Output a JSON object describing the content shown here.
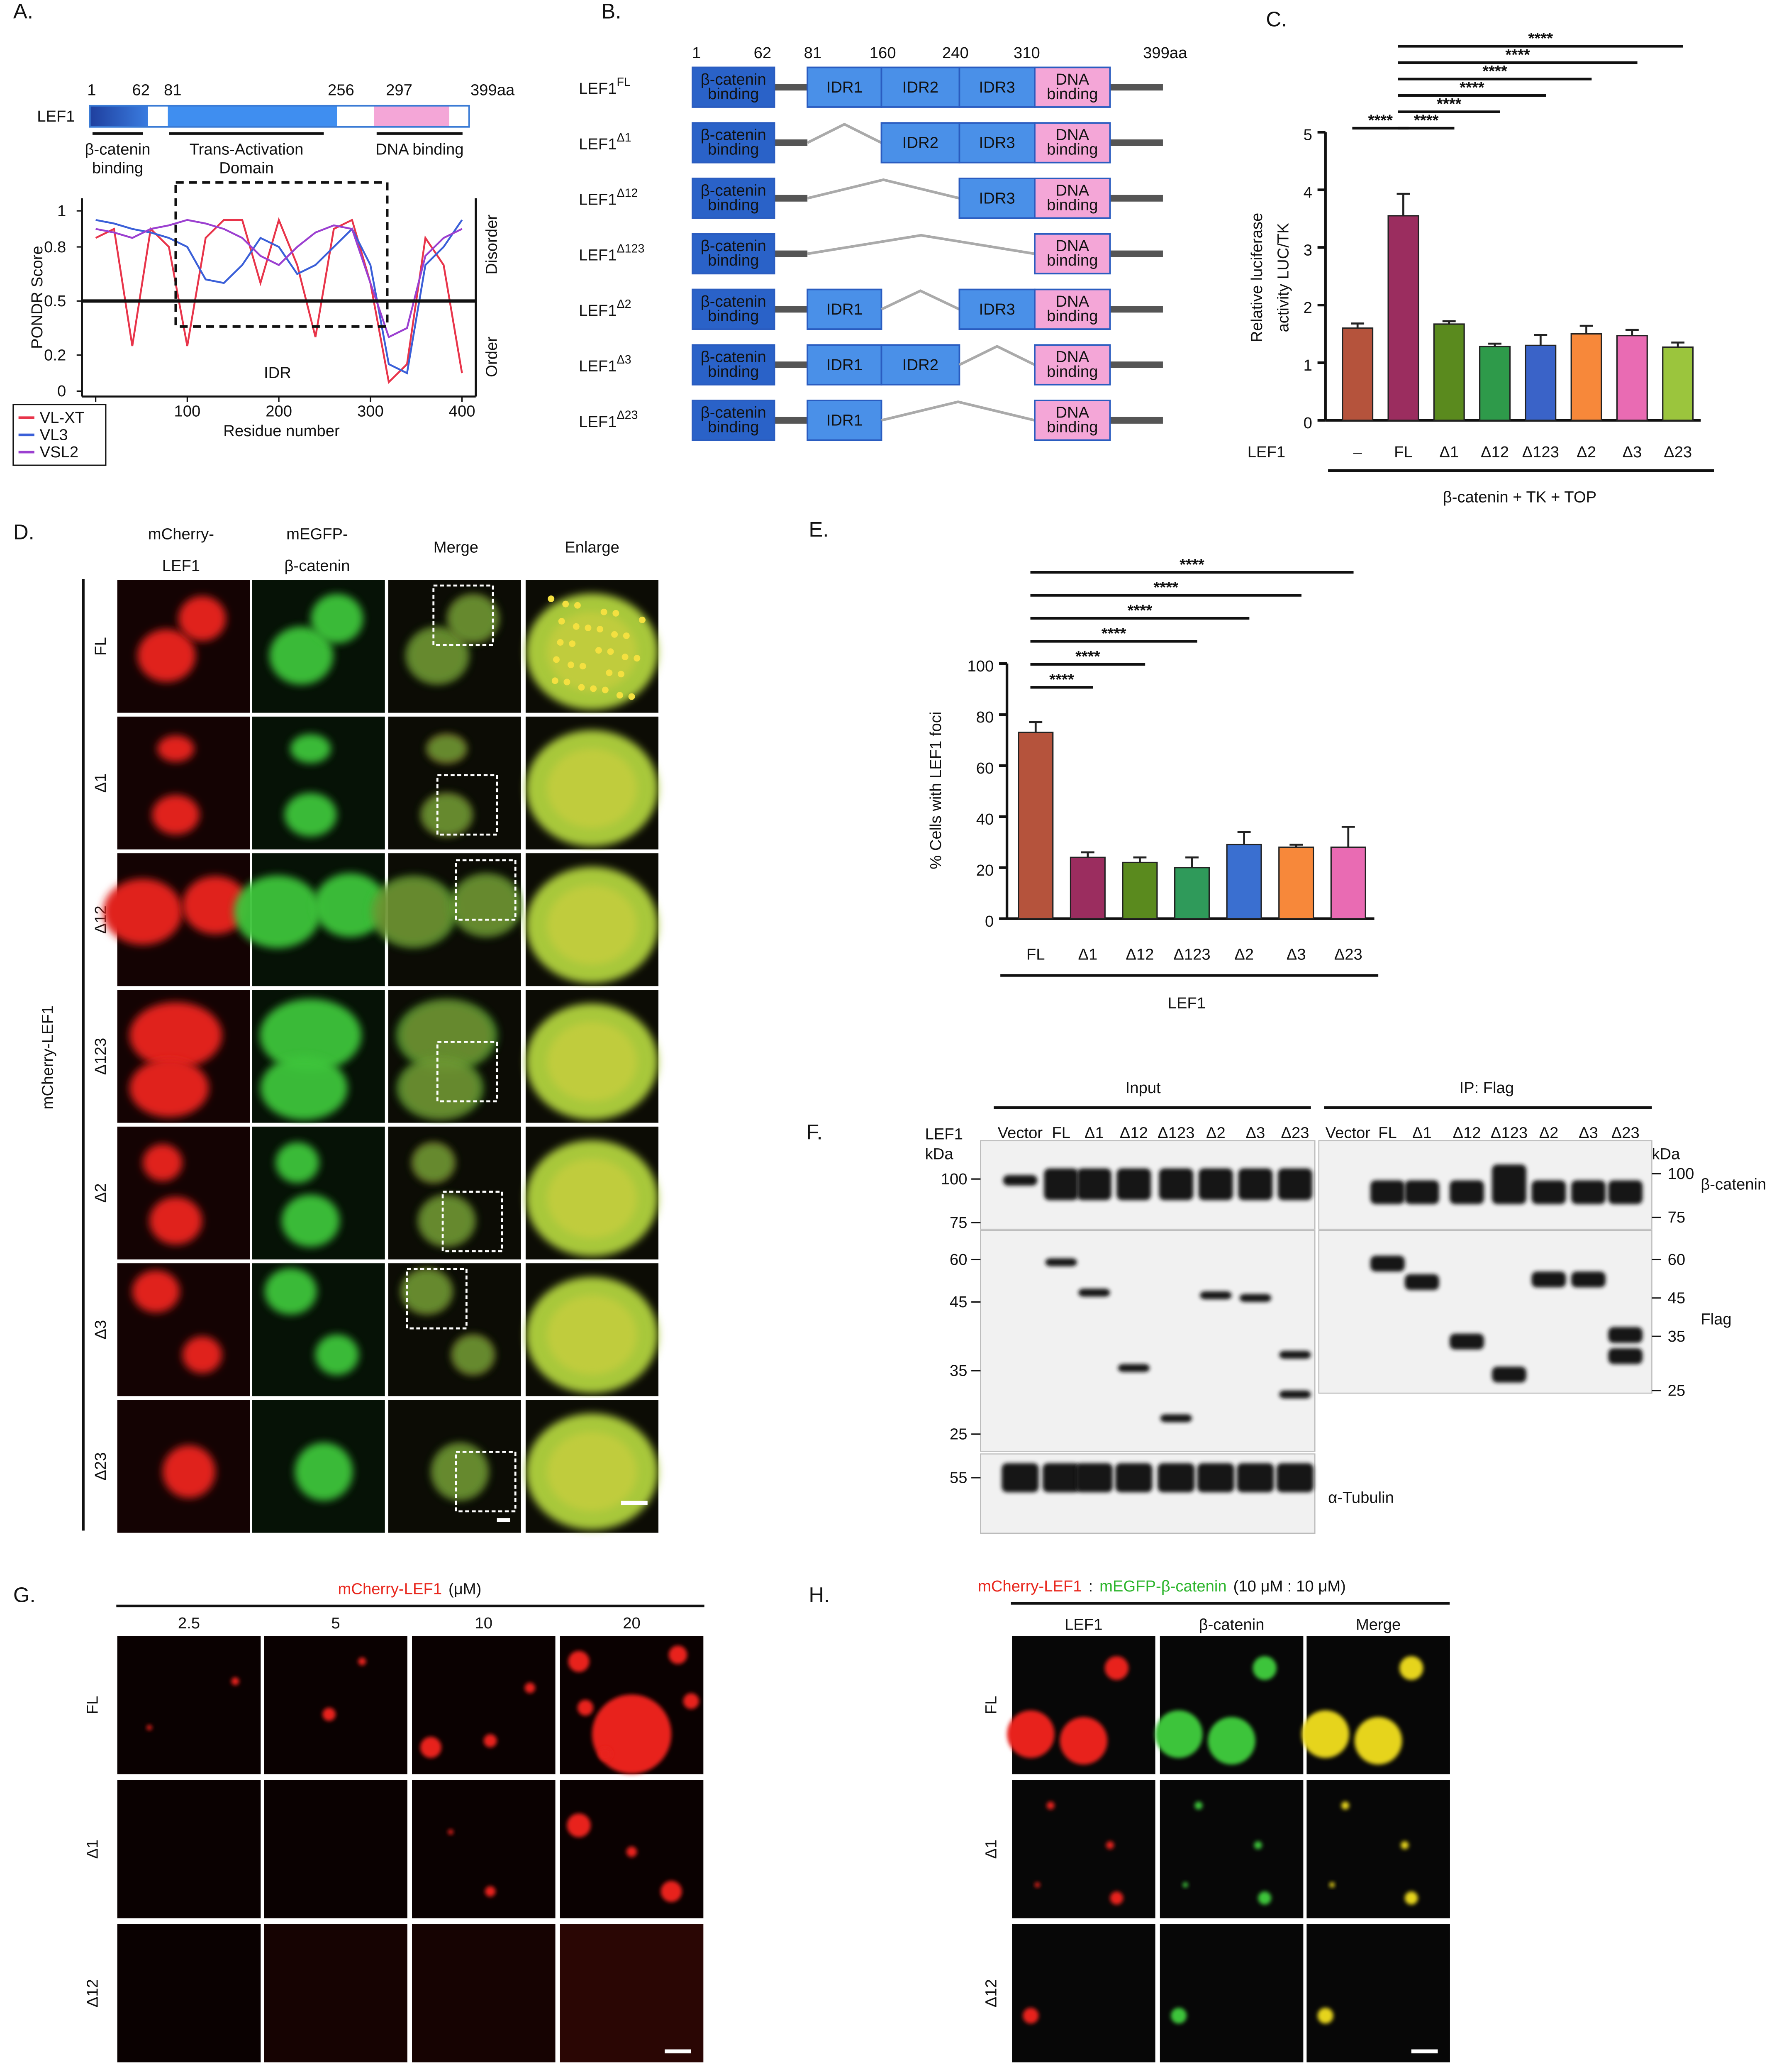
{
  "panel_a": {
    "label": "A.",
    "protein": "LEF1",
    "positions": [
      "1",
      "62",
      "81",
      "256",
      "297",
      "399aa"
    ],
    "domains": [
      [
        "β-catenin",
        "binding"
      ],
      [
        "Trans-Activation",
        "Domain"
      ],
      [
        "DNA binding"
      ]
    ],
    "legend_title": null
  },
  "panel_b": {
    "label": "B.",
    "positions": [
      "1",
      "62",
      "81",
      "160",
      "240",
      "310",
      "399aa"
    ],
    "constructs": [
      {
        "name": "LEF1",
        "sup": "FL",
        "domains": [
          [
            "β-catenin",
            "binding"
          ],
          [
            "IDR1"
          ],
          [
            "IDR2"
          ],
          [
            "IDR3"
          ],
          [
            "DNA",
            "binding"
          ]
        ]
      },
      {
        "name": "LEF1",
        "sup": "Δ1",
        "domains": [
          [
            "β-catenin",
            "binding"
          ],
          null,
          [
            "IDR2"
          ],
          [
            "IDR3"
          ],
          [
            "DNA",
            "binding"
          ]
        ]
      },
      {
        "name": "LEF1",
        "sup": "Δ12",
        "domains": [
          [
            "β-catenin",
            "binding"
          ],
          null,
          null,
          [
            "IDR3"
          ],
          [
            "DNA",
            "binding"
          ]
        ]
      },
      {
        "name": "LEF1",
        "sup": "Δ123",
        "domains": [
          [
            "β-catenin",
            "binding"
          ],
          null,
          null,
          null,
          [
            "DNA",
            "binding"
          ]
        ]
      },
      {
        "name": "LEF1",
        "sup": "Δ2",
        "domains": [
          [
            "β-catenin",
            "binding"
          ],
          [
            "IDR1"
          ],
          null,
          [
            "IDR3"
          ],
          [
            "DNA",
            "binding"
          ]
        ]
      },
      {
        "name": "LEF1",
        "sup": "Δ3",
        "domains": [
          [
            "β-catenin",
            "binding"
          ],
          [
            "IDR1"
          ],
          [
            "IDR2"
          ],
          null,
          [
            "DNA",
            "binding"
          ]
        ]
      },
      {
        "name": "LEF1",
        "sup": "Δ23",
        "domains": [
          [
            "β-catenin",
            "binding"
          ],
          [
            "IDR1"
          ],
          null,
          null,
          [
            "DNA",
            "binding"
          ]
        ]
      }
    ]
  },
  "panel_d": {
    "label": "D.",
    "columns": [
      [
        "mCherry-",
        "LEF1"
      ],
      [
        "mEGFP-",
        "β-catenin"
      ],
      [
        "Merge"
      ],
      [
        "Enlarge"
      ]
    ],
    "header_colors": [
      "#e8261c",
      "#2db52d",
      "#111111",
      "#111111"
    ],
    "rows": [
      "FL",
      "Δ1",
      "Δ12",
      "Δ123",
      "Δ2",
      "Δ3",
      "Δ23"
    ],
    "side_label": "mCherry-LEF1",
    "side_color": "#e8261c"
  },
  "panel_e": {
    "label": "E."
  },
  "panel_f": {
    "label": "F.",
    "groups": [
      "Input",
      "IP: Flag"
    ],
    "lane_header": "LEF1",
    "kda": "kDa",
    "lanes": [
      "Vector",
      "FL",
      "Δ1",
      "Δ12",
      "Δ123",
      "Δ2",
      "Δ3",
      "Δ23"
    ],
    "markers_left": [
      100,
      75,
      60,
      45,
      35,
      25,
      55
    ],
    "markers_right": [
      100,
      75,
      60,
      45,
      35,
      25
    ],
    "blots": [
      "β-catenin",
      "Flag",
      "α-Tubulin"
    ]
  },
  "panel_g": {
    "label": "G.",
    "title": "mCherry-LEF1",
    "unit": "(μM)",
    "title_color": "#e8261c",
    "concentrations": [
      2.5,
      5,
      10,
      20
    ],
    "rows": [
      "FL",
      "Δ1",
      "Δ12"
    ]
  },
  "panel_h": {
    "label": "H.",
    "protein1": "mCherry-LEF1",
    "sep": ":",
    "protein2": "mEGFP-β-catenin",
    "ratio": "(10 μM : 10 μM)",
    "colors": [
      "#e8261c",
      "#2db52d"
    ],
    "columns": [
      "LEF1",
      "β-catenin",
      "Merge"
    ],
    "rows": [
      "FL",
      "Δ1",
      "Δ12"
    ]
  },
  "chart_data": [
    {
      "type": "line",
      "ylabel": "PONDR Score",
      "xlabel": "Residue number",
      "x": [
        0,
        20,
        40,
        60,
        80,
        100,
        120,
        140,
        160,
        180,
        200,
        220,
        240,
        260,
        280,
        300,
        320,
        340,
        360,
        380,
        400
      ],
      "xlim": [
        -15,
        415
      ],
      "xticks": [
        0,
        100,
        200,
        300,
        400
      ],
      "ylim": [
        -0.03,
        1.07
      ],
      "yticks": [
        0,
        0.2,
        0.5,
        0.8,
        1
      ],
      "threshold": 0.5,
      "annotations": [
        "IDR",
        "Disorder",
        "Order"
      ],
      "series": [
        {
          "name": "VL-XT",
          "color": "#e8344a",
          "values": [
            0.85,
            0.9,
            0.25,
            0.9,
            0.8,
            0.25,
            0.85,
            0.95,
            0.95,
            0.6,
            0.95,
            0.7,
            0.3,
            0.9,
            0.95,
            0.6,
            0.05,
            0.15,
            0.85,
            0.7,
            0.1
          ]
        },
        {
          "name": "VL3",
          "color": "#3a5fd8",
          "values": [
            0.95,
            0.93,
            0.9,
            0.88,
            0.85,
            0.8,
            0.62,
            0.6,
            0.7,
            0.85,
            0.8,
            0.65,
            0.7,
            0.8,
            0.9,
            0.7,
            0.15,
            0.1,
            0.7,
            0.8,
            0.95
          ]
        },
        {
          "name": "VSL2",
          "color": "#9b3fd0",
          "values": [
            0.9,
            0.88,
            0.85,
            0.9,
            0.92,
            0.95,
            0.93,
            0.9,
            0.85,
            0.75,
            0.7,
            0.8,
            0.88,
            0.92,
            0.9,
            0.6,
            0.3,
            0.35,
            0.75,
            0.85,
            0.9
          ]
        }
      ]
    },
    {
      "type": "bar",
      "label": "C.",
      "ylabel": [
        "Relative luciferase",
        "activity LUC/TK"
      ],
      "xlabel": "LEF1",
      "group_label": "β-catenin + TK + TOP",
      "categories": [
        "–",
        "FL",
        "Δ1",
        "Δ12",
        "Δ123",
        "Δ2",
        "Δ3",
        "Δ23"
      ],
      "values": [
        1.6,
        3.55,
        1.67,
        1.28,
        1.3,
        1.5,
        1.47,
        1.27
      ],
      "errors": [
        0.08,
        0.38,
        0.05,
        0.05,
        0.18,
        0.14,
        0.1,
        0.08
      ],
      "colors": [
        "#b5533c",
        "#9b2d5f",
        "#5a8a1e",
        "#2e9a4a",
        "#3a63c8",
        "#f7883a",
        "#e96bb3",
        "#9bc53d"
      ],
      "ylim": [
        0,
        5
      ],
      "yticks": [
        0,
        1,
        2,
        3,
        4,
        5
      ],
      "comparisons": [
        {
          "groups": [
            "–",
            "FL"
          ],
          "label": "****"
        },
        {
          "groups": [
            "FL",
            "Δ1"
          ],
          "label": "****"
        },
        {
          "groups": [
            "FL",
            "Δ12"
          ],
          "label": "****"
        },
        {
          "groups": [
            "FL",
            "Δ123"
          ],
          "label": "****"
        },
        {
          "groups": [
            "FL",
            "Δ2"
          ],
          "label": "****"
        },
        {
          "groups": [
            "FL",
            "Δ3"
          ],
          "label": "****"
        },
        {
          "groups": [
            "FL",
            "Δ23"
          ],
          "label": "****"
        }
      ]
    },
    {
      "type": "bar",
      "ylabel": "% Cells with LEF1 foci",
      "xlabel": "LEF1",
      "categories": [
        "FL",
        "Δ1",
        "Δ12",
        "Δ123",
        "Δ2",
        "Δ3",
        "Δ23"
      ],
      "values": [
        73,
        24,
        22,
        20,
        29,
        28,
        28
      ],
      "errors": [
        4,
        2,
        2,
        4,
        5,
        1,
        8
      ],
      "colors": [
        "#b5533c",
        "#9b2d5f",
        "#5a8a1e",
        "#2f9a5a",
        "#3a6fd0",
        "#f7883a",
        "#e96bb3"
      ],
      "ylim": [
        0,
        100
      ],
      "yticks": [
        0,
        20,
        40,
        60,
        80,
        100
      ],
      "comparisons": [
        {
          "groups": [
            "FL",
            "Δ1"
          ],
          "label": "****"
        },
        {
          "groups": [
            "FL",
            "Δ12"
          ],
          "label": "****"
        },
        {
          "groups": [
            "FL",
            "Δ123"
          ],
          "label": "****"
        },
        {
          "groups": [
            "FL",
            "Δ2"
          ],
          "label": "****"
        },
        {
          "groups": [
            "FL",
            "Δ3"
          ],
          "label": "****"
        },
        {
          "groups": [
            "FL",
            "Δ23"
          ],
          "label": "****"
        }
      ]
    }
  ]
}
